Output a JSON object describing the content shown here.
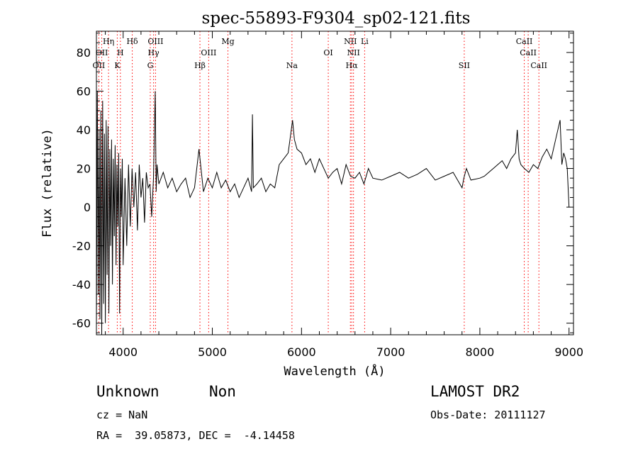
{
  "chart_data": {
    "type": "line",
    "title": "spec-55893-F9304_sp02-121.fits",
    "xlabel": "Wavelength (Å)",
    "ylabel": "Flux (relative)",
    "xlim": [
      3700,
      9050
    ],
    "ylim": [
      -66,
      91
    ],
    "xticks": [
      4000,
      5000,
      6000,
      7000,
      8000,
      9000
    ],
    "yticks": [
      -60,
      -40,
      -20,
      0,
      20,
      40,
      60,
      80
    ],
    "grid": false,
    "line_color": "#000000",
    "marker_color": "#ff0000",
    "spectral_lines": [
      {
        "label": "OII",
        "x": 3727,
        "row": 3
      },
      {
        "label": "OII",
        "x": 3760,
        "row": 2
      },
      {
        "label": "Hη",
        "x": 3836,
        "row": 1
      },
      {
        "label": "H",
        "x": 3969,
        "row": 2
      },
      {
        "label": "K",
        "x": 3934,
        "row": 3
      },
      {
        "label": "Hδ",
        "x": 4102,
        "row": 1
      },
      {
        "label": "OIII",
        "x": 4363,
        "row": 1
      },
      {
        "label": "Hγ",
        "x": 4341,
        "row": 2
      },
      {
        "label": "G",
        "x": 4304,
        "row": 3
      },
      {
        "label": "Hβ",
        "x": 4861,
        "row": 3
      },
      {
        "label": "OIII",
        "x": 4959,
        "row": 2
      },
      {
        "label": "Mg",
        "x": 5175,
        "row": 1
      },
      {
        "label": "Na",
        "x": 5893,
        "row": 3
      },
      {
        "label": "OI",
        "x": 6300,
        "row": 2
      },
      {
        "label": "NII",
        "x": 6548,
        "row": 1
      },
      {
        "label": "NII",
        "x": 6583,
        "row": 2
      },
      {
        "label": "Hα",
        "x": 6563,
        "row": 3
      },
      {
        "label": "Li",
        "x": 6708,
        "row": 1
      },
      {
        "label": "SII",
        "x": 7825,
        "row": 3
      },
      {
        "label": "CaII",
        "x": 8498,
        "row": 1
      },
      {
        "label": "CaII",
        "x": 8542,
        "row": 2
      },
      {
        "label": "CaII",
        "x": 8662,
        "row": 3
      }
    ],
    "series": [
      {
        "x": [
          3700,
          3710,
          3720,
          3730,
          3740,
          3750,
          3760,
          3770,
          3780,
          3790,
          3800,
          3810,
          3820,
          3830,
          3840,
          3850,
          3860,
          3870,
          3880,
          3890,
          3900,
          3910,
          3920,
          3930,
          3940,
          3950,
          3960,
          3970,
          3980,
          3990,
          4000,
          4020,
          4040,
          4060,
          4080,
          4100,
          4120,
          4140,
          4160,
          4180,
          4200,
          4220,
          4240,
          4260,
          4280,
          4300,
          4320,
          4340,
          4360,
          4370,
          4380,
          4400,
          4450,
          4500,
          4550,
          4600,
          4650,
          4700,
          4750,
          4800,
          4850,
          4900,
          4950,
          5000,
          5050,
          5100,
          5150,
          5200,
          5250,
          5300,
          5350,
          5400,
          5440,
          5450,
          5460,
          5500,
          5550,
          5600,
          5650,
          5700,
          5750,
          5800,
          5850,
          5880,
          5900,
          5920,
          5950,
          6000,
          6050,
          6100,
          6150,
          6200,
          6250,
          6300,
          6350,
          6400,
          6450,
          6500,
          6550,
          6600,
          6650,
          6700,
          6750,
          6800,
          6900,
          7000,
          7100,
          7200,
          7300,
          7400,
          7500,
          7600,
          7700,
          7800,
          7820,
          7850,
          7900,
          8000,
          8050,
          8100,
          8150,
          8200,
          8250,
          8300,
          8350,
          8400,
          8420,
          8440,
          8460,
          8500,
          8550,
          8600,
          8650,
          8700,
          8750,
          8800,
          8850,
          8900,
          8920,
          8940,
          8960,
          8980,
          9000
        ],
        "y": [
          -62,
          60,
          -45,
          40,
          -58,
          50,
          -66,
          55,
          -50,
          38,
          -60,
          45,
          -35,
          42,
          -55,
          30,
          -20,
          35,
          -40,
          25,
          -15,
          32,
          -30,
          22,
          -10,
          28,
          -55,
          20,
          -5,
          25,
          -30,
          15,
          -20,
          22,
          -10,
          20,
          0,
          18,
          -12,
          22,
          5,
          15,
          -8,
          18,
          10,
          12,
          -5,
          15,
          60,
          8,
          22,
          12,
          18,
          10,
          15,
          8,
          12,
          15,
          5,
          10,
          30,
          8,
          15,
          10,
          18,
          10,
          14,
          8,
          12,
          5,
          10,
          15,
          8,
          48,
          10,
          12,
          15,
          8,
          12,
          10,
          22,
          25,
          28,
          38,
          45,
          35,
          30,
          28,
          22,
          25,
          18,
          25,
          20,
          15,
          18,
          20,
          12,
          22,
          16,
          15,
          18,
          12,
          20,
          15,
          14,
          16,
          18,
          15,
          17,
          20,
          14,
          16,
          18,
          10,
          15,
          20,
          14,
          15,
          16,
          18,
          20,
          22,
          24,
          20,
          25,
          28,
          40,
          25,
          22,
          20,
          18,
          22,
          20,
          26,
          30,
          25,
          35,
          45,
          22,
          28,
          25,
          20,
          0
        ]
      }
    ]
  },
  "info": {
    "class_label": "Unknown",
    "subclass_label": "Non",
    "survey": "LAMOST DR2",
    "cz": "cz = NaN",
    "obs_date": "Obs-Date: 20111127",
    "coords": "RA =  39.05873, DEC =  -4.14458"
  }
}
